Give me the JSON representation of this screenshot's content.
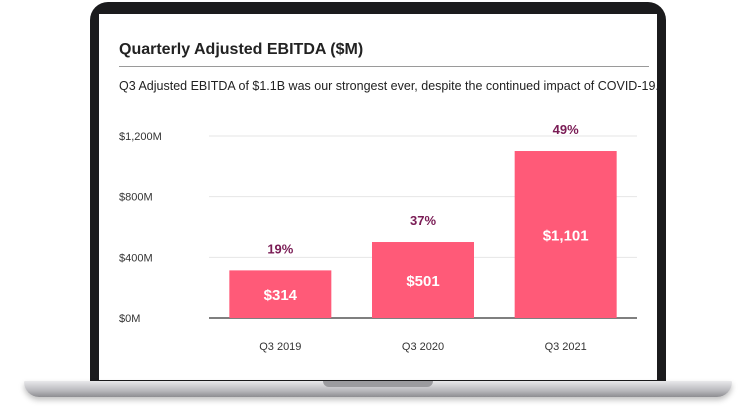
{
  "chart_data": {
    "type": "bar",
    "title": "Quarterly Adjusted EBITDA ($M)",
    "subtitle": "Q3 Adjusted EBITDA of $1.1B was our strongest ever, despite the continued impact of COVID-19.",
    "categories": [
      "Q3 2019",
      "Q3 2020",
      "Q3 2021"
    ],
    "values": [
      314,
      501,
      1101
    ],
    "value_labels": [
      "$314",
      "$501",
      "$1,101"
    ],
    "margin_labels": [
      "19%",
      "37%",
      "49%"
    ],
    "yticks": [
      0,
      400,
      800,
      1200
    ],
    "ytick_labels": [
      "$0M",
      "$400M",
      "$800M",
      "$1,200M"
    ],
    "ylim": [
      0,
      1200
    ],
    "grid": true,
    "colors": {
      "bar": "#ff5a78",
      "margin_label": "#7a1c55",
      "value_label": "#ffffff",
      "grid": "#e6e6e6",
      "axis": "#555555"
    }
  }
}
